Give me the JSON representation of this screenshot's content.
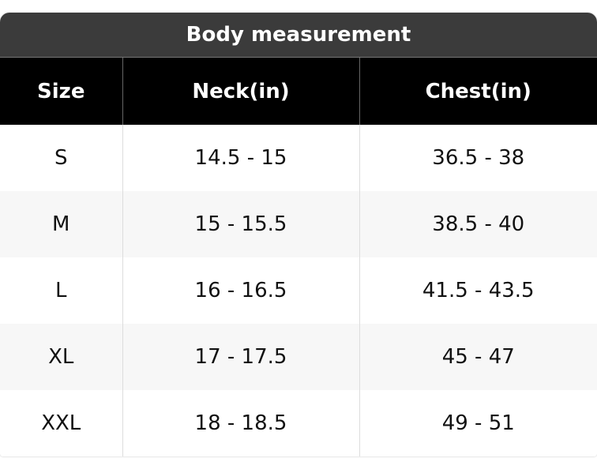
{
  "title": "Body measurement",
  "table": {
    "header": [
      "Size",
      "Neck(in)",
      "Chest(in)"
    ],
    "rows": [
      [
        "S",
        "14.5 - 15",
        "36.5 - 38"
      ],
      [
        "M",
        "15 - 15.5",
        "38.5 - 40"
      ],
      [
        "L",
        "16 - 16.5",
        "41.5 - 43.5"
      ],
      [
        "XL",
        "17 - 17.5",
        "45 - 47"
      ],
      [
        "XXL",
        "18 - 18.5",
        "49 - 51"
      ]
    ]
  }
}
